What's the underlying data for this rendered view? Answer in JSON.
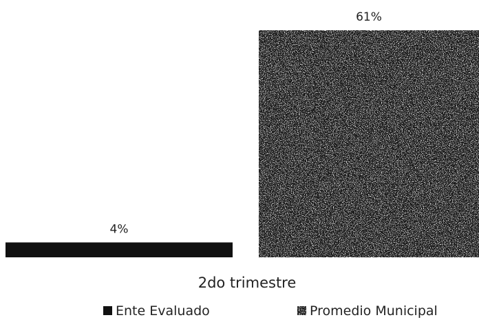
{
  "chart_data": {
    "type": "bar",
    "categories": [
      "2do trimestre"
    ],
    "series": [
      {
        "name": "Ente Evaluado",
        "values": [
          4
        ],
        "label": "4%",
        "color": "#111111",
        "pattern": "solid"
      },
      {
        "name": "Promedio Municipal",
        "values": [
          61
        ],
        "label": "61%",
        "color": "#1a1a1a",
        "pattern": "speckled"
      }
    ],
    "ylim": [
      0,
      61
    ],
    "unit": "%",
    "grid": false,
    "legend_position": "bottom"
  }
}
